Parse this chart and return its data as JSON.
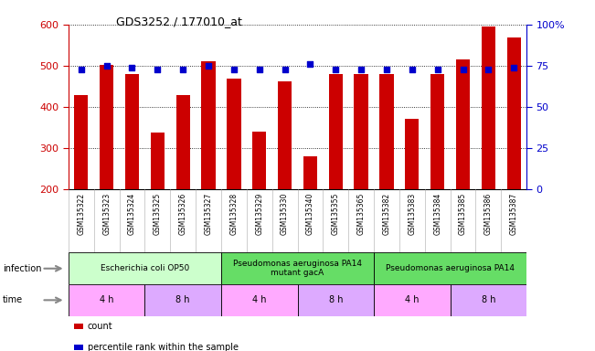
{
  "title": "GDS3252 / 177010_at",
  "samples": [
    "GSM135322",
    "GSM135323",
    "GSM135324",
    "GSM135325",
    "GSM135326",
    "GSM135327",
    "GSM135328",
    "GSM135329",
    "GSM135330",
    "GSM135340",
    "GSM135355",
    "GSM135365",
    "GSM135382",
    "GSM135383",
    "GSM135384",
    "GSM135385",
    "GSM135386",
    "GSM135387"
  ],
  "counts": [
    430,
    502,
    480,
    338,
    428,
    512,
    470,
    340,
    462,
    280,
    480,
    480,
    480,
    372,
    480,
    515,
    596,
    568
  ],
  "percentiles": [
    73,
    75,
    74,
    73,
    73,
    75,
    73,
    73,
    73,
    76,
    73,
    73,
    73,
    73,
    73,
    73,
    73,
    74
  ],
  "ylim_left": [
    200,
    600
  ],
  "ylim_right": [
    0,
    100
  ],
  "yticks_left": [
    200,
    300,
    400,
    500,
    600
  ],
  "yticks_right": [
    0,
    25,
    50,
    75,
    100
  ],
  "bar_color": "#cc0000",
  "dot_color": "#0000cc",
  "xticklabel_bg": "#cccccc",
  "infection_groups": [
    {
      "label": "Escherichia coli OP50",
      "start": 0,
      "end": 6,
      "color": "#ccffcc"
    },
    {
      "label": "Pseudomonas aeruginosa PA14\nmutant gacA",
      "start": 6,
      "end": 12,
      "color": "#66dd66"
    },
    {
      "label": "Pseudomonas aeruginosa PA14",
      "start": 12,
      "end": 18,
      "color": "#66dd66"
    }
  ],
  "time_groups": [
    {
      "label": "4 h",
      "start": 0,
      "end": 3,
      "color": "#ffaaff"
    },
    {
      "label": "8 h",
      "start": 3,
      "end": 6,
      "color": "#ddaaff"
    },
    {
      "label": "4 h",
      "start": 6,
      "end": 9,
      "color": "#ffaaff"
    },
    {
      "label": "8 h",
      "start": 9,
      "end": 12,
      "color": "#ddaaff"
    },
    {
      "label": "4 h",
      "start": 12,
      "end": 15,
      "color": "#ffaaff"
    },
    {
      "label": "8 h",
      "start": 15,
      "end": 18,
      "color": "#ddaaff"
    }
  ],
  "ylabel_left_color": "#cc0000",
  "ylabel_right_color": "#0000cc",
  "legend": [
    {
      "color": "#cc0000",
      "label": "count"
    },
    {
      "color": "#0000cc",
      "label": "percentile rank within the sample"
    }
  ],
  "left_labels": [
    "infection",
    "time"
  ],
  "arrow_color": "#888888"
}
